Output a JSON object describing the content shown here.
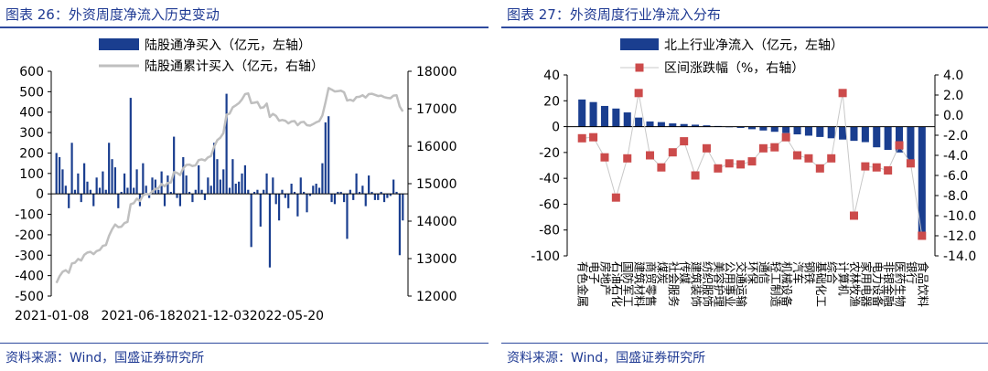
{
  "left": {
    "title": "图表 26：外资周度净流入历史变动",
    "source": "资料来源：Wind，国盛证券研究所"
  },
  "right": {
    "title": "图表 27：外资周度行业净流入分布",
    "source": "资料来源：Wind，国盛证券研究所"
  },
  "colors": {
    "bar": "#1a3e8f",
    "line": "#bfbfbf",
    "marker": "#cc4b4b",
    "title": "#1f3a93"
  },
  "chart_data": [
    {
      "type": "bar+line",
      "title": "外资周度净流入历史变动",
      "legend": [
        "陆股通净买入（亿元，左轴）",
        "陆股通累计买入（亿元，右轴）"
      ],
      "x_tick_labels": [
        "2021-01-08",
        "2021-06-18",
        "2021-12-03",
        "2022-05-20"
      ],
      "ylim_left": [
        -500,
        600
      ],
      "yticks_left": [
        -500,
        -400,
        -300,
        -200,
        -100,
        0,
        100,
        200,
        300,
        400,
        500,
        600
      ],
      "ylim_right": [
        12000,
        18000
      ],
      "yticks_right": [
        12000,
        13000,
        14000,
        15000,
        16000,
        17000,
        18000
      ],
      "bar_values": [
        200,
        180,
        120,
        40,
        -70,
        250,
        20,
        100,
        -40,
        150,
        60,
        20,
        -60,
        80,
        30,
        110,
        20,
        250,
        170,
        130,
        -70,
        10,
        100,
        30,
        470,
        30,
        120,
        -60,
        150,
        40,
        -20,
        80,
        70,
        20,
        110,
        -60,
        90,
        10,
        280,
        -20,
        -60,
        180,
        90,
        10,
        -40,
        20,
        140,
        20,
        -30,
        80,
        40,
        250,
        170,
        70,
        120,
        490,
        30,
        170,
        50,
        60,
        100,
        140,
        20,
        -260,
        10,
        20,
        -160,
        20,
        100,
        -360,
        80,
        -50,
        -130,
        20,
        -20,
        -70,
        50,
        10,
        -110,
        80,
        10,
        -90,
        -10,
        40,
        50,
        30,
        150,
        350,
        380,
        -40,
        -50,
        10,
        10,
        -40,
        -220,
        20,
        -30,
        100,
        10,
        40,
        -60,
        90,
        10,
        -30,
        -30,
        10,
        -40,
        -20,
        -10,
        70,
        10,
        -300,
        -130
      ]
    },
    {
      "type": "bar+scatter",
      "title": "外资周度行业净流入分布",
      "legend": [
        "北上行业净流入（亿元，左轴）",
        "区间涨跌幅（%，右轴）"
      ],
      "categories": [
        "有色金属",
        "电子",
        "房地产",
        "石油石化",
        "国防军工",
        "建筑材料",
        "商贸零售",
        "煤炭",
        "社会服务",
        "传媒",
        "建筑装饰",
        "纺织服饰",
        "美容护理",
        "公用事业",
        "交通运输",
        "环保",
        "通信",
        "轻工制造",
        "机械设备",
        "汽车",
        "钢铁",
        "基础化工",
        "综合",
        "计算机",
        "农林牧渔",
        "家用电器",
        "电力设备",
        "非银金融",
        "医药生物",
        "银行",
        "食品饮料"
      ],
      "values": [
        21,
        19,
        16,
        14,
        11,
        7,
        4,
        3.5,
        2.5,
        2,
        1.5,
        1,
        0.5,
        -0.5,
        -1,
        -2,
        -3,
        -4,
        -5,
        -6,
        -7,
        -8,
        -9,
        -10,
        -11,
        -12,
        -16,
        -18,
        -20,
        -26,
        -85
      ],
      "pct_change": [
        -2.3,
        -2.2,
        -4.2,
        -8.2,
        -4.3,
        2.2,
        -4.0,
        -5.2,
        -3.7,
        -2.6,
        -6.0,
        -3.3,
        -5.3,
        -4.8,
        -4.9,
        -4.6,
        -3.3,
        -3.2,
        -2.2,
        -4.0,
        -4.3,
        -5.3,
        -4.3,
        2.2,
        -10.0,
        -5.1,
        -5.2,
        -5.5,
        -3.0,
        -4.8,
        -12.0
      ],
      "ylim_left": [
        -100,
        40
      ],
      "yticks_left": [
        -100,
        -80,
        -60,
        -40,
        -20,
        0,
        20,
        40
      ],
      "ylim_right": [
        -14.0,
        4.0
      ],
      "yticks_right": [
        "-14.0",
        "-12.0",
        "-10.0",
        "-8.0",
        "-6.0",
        "-4.0",
        "-2.0",
        "0.0",
        "2.0",
        "4.0"
      ]
    }
  ]
}
